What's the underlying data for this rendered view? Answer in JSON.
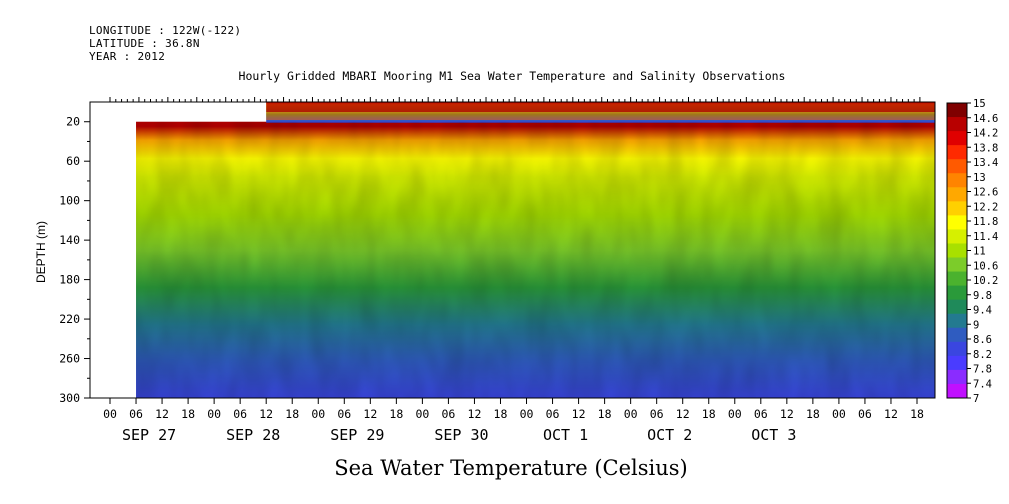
{
  "header": {
    "longitude": "LONGITUDE : 122W(-122)",
    "latitude": "LATITUDE : 36.8N",
    "year": "YEAR : 2012"
  },
  "chart_data": {
    "type": "heatmap",
    "title": "Hourly Gridded MBARI Mooring M1 Sea Water Temperature and Salinity Observations",
    "subtitle": "Sea Water Temperature (Celsius)",
    "ylabel": "DEPTH (m)",
    "xlabel": "",
    "y_axis": {
      "reversed": true,
      "range": [
        0,
        300
      ],
      "ticks": [
        20,
        60,
        100,
        140,
        180,
        220,
        260,
        300
      ]
    },
    "x_axis": {
      "hour_ticks": [
        "00",
        "06",
        "12",
        "18",
        "00",
        "06",
        "12",
        "18",
        "00",
        "06",
        "12",
        "18",
        "00",
        "06",
        "12",
        "18",
        "00",
        "06",
        "12",
        "18",
        "00",
        "06",
        "12",
        "18",
        "00",
        "06",
        "12",
        "18",
        "00",
        "06",
        "12",
        "18"
      ],
      "day_labels": [
        "SEP 27",
        "SEP 28",
        "SEP 29",
        "SEP 30",
        "OCT  1",
        "OCT  2",
        "OCT  3"
      ]
    },
    "colorbar": {
      "levels": [
        "15",
        "14.6",
        "14.2",
        "13.8",
        "13.4",
        "13",
        "12.6",
        "12.2",
        "11.8",
        "11.4",
        "11",
        "10.6",
        "10.2",
        "9.8",
        "9.4",
        "9",
        "8.6",
        "8.2",
        "7.8",
        "7.4",
        "7"
      ],
      "colors": [
        "#7f0000",
        "#b80000",
        "#e00000",
        "#ff2a00",
        "#ff5a00",
        "#ff8400",
        "#ffa800",
        "#ffd000",
        "#ffff00",
        "#d6f000",
        "#a8e000",
        "#7ccc2a",
        "#4bb22e",
        "#2a9a3a",
        "#1f8a5a",
        "#237a90",
        "#2f5cc0",
        "#3a46e0",
        "#4a3cff",
        "#8a2cff",
        "#c010ff"
      ]
    },
    "profile": {
      "depths": [
        5,
        20,
        40,
        60,
        100,
        140,
        180,
        220,
        260,
        300
      ],
      "temperatures": [
        14.3,
        12.3,
        11.7,
        11.3,
        10.9,
        10.5,
        9.7,
        8.8,
        8.2,
        7.8
      ]
    },
    "data_start": "SEP 26 18:00",
    "surface_start": "SEP 27 12:00"
  }
}
